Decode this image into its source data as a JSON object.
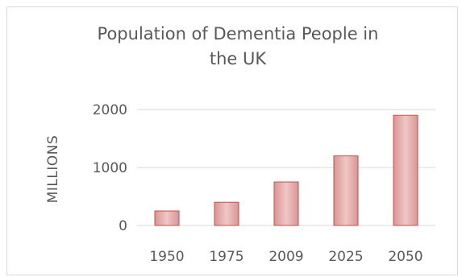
{
  "chart_data": {
    "type": "bar",
    "title_line1": "Population of Dementia People in",
    "title_line2": "the UK",
    "xlabel": "",
    "ylabel": "MILLIONS",
    "categories": [
      "1950",
      "1975",
      "2009",
      "2025",
      "2050"
    ],
    "values": [
      250,
      400,
      750,
      1200,
      1900
    ],
    "ylim": [
      0,
      2000
    ],
    "yticks": [
      0,
      1000,
      2000
    ],
    "grid": true,
    "legend": "none",
    "bar_fill": "#d99594",
    "bar_fill_light": "#efc7c6",
    "bar_stroke": "#c0504d"
  }
}
